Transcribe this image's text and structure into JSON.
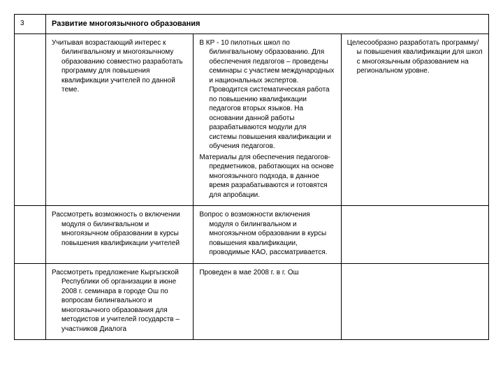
{
  "table": {
    "section_number": "3",
    "section_title": "Развитие многоязычного образования",
    "rows": [
      {
        "col_a_p1": "Учитывая возрастающий интерес к билингвальному и многоязычному образованию совместно разработать программу для повышения квалификации учителей по данной теме.",
        "col_b_p1": "В КР - 10 пилотных школ по билингвальному образованию. Для обеспечения педагогов – проведены семинары с участием международных и национальных экспертов. Проводится систематическая работа по повышению квалификации педагогов вторых языков. На основании данной работы разрабатываются модули для системы повышения квалификации и обучения педагогов.",
        "col_b_p2": "Материалы для обеспечения педагогов-предметников, работающих на основе многоязычного подхода, в данное время разрабатываются и готовятся для апробации.",
        "col_c_p1": "Целесообразно разработать программу/ы повышения квалификации для школ с многоязычным образованием на региональном уровне."
      },
      {
        "col_a_p1": "Рассмотреть возможность о включении модуля о билингвальном и многоязычном образовании в курсы повышения квалификации учителей",
        "col_b_p1": "Вопрос о возможности включения модуля о билингвальном и многоязычном образовании в курсы повышения квалификации, проводимые КАО, рассматривается.",
        "col_c_p1": ""
      },
      {
        "col_a_p1": "Рассмотреть предложение Кыргызской Республики об организации в июне 2008 г. семинара в городе Ош по вопросам билингвального и многоязычного образования для методистов и учителей государств – участников Диалога",
        "col_b_p1": "Проведен в мае 2008 г. в г. Ош",
        "col_c_p1": ""
      }
    ]
  }
}
